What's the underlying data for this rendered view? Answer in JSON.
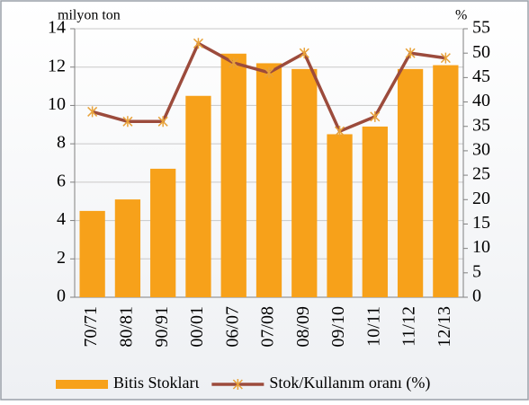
{
  "chart_data": {
    "type": "bar",
    "ylabel": "milyon ton",
    "y2label": "%",
    "categories": [
      "70/71",
      "80/81",
      "90/91",
      "00/01",
      "06/07",
      "07/08",
      "08/09",
      "09/10",
      "10/11",
      "11/12",
      "12/13"
    ],
    "series": [
      {
        "name": "Bitis Stoklarι",
        "color": "#f7a11a",
        "values": [
          4.5,
          5.1,
          6.7,
          10.5,
          12.7,
          12.2,
          11.9,
          8.5,
          8.9,
          11.9,
          12.1
        ]
      },
      {
        "name": "Stok/Kullanım oranı (%)",
        "color": "#9c4b3c",
        "axis": "y2",
        "values": [
          38,
          36,
          36,
          52,
          48,
          46,
          50,
          34,
          37,
          50,
          49
        ]
      }
    ],
    "ylim": [
      0,
      14
    ],
    "yticks": [
      0,
      2,
      4,
      6,
      8,
      10,
      12,
      14
    ],
    "y2lim": [
      0,
      55
    ],
    "y2ticks": [
      0,
      5,
      10,
      15,
      20,
      25,
      30,
      35,
      40,
      45,
      50,
      55
    ],
    "grid": true,
    "legend": "bottom"
  }
}
